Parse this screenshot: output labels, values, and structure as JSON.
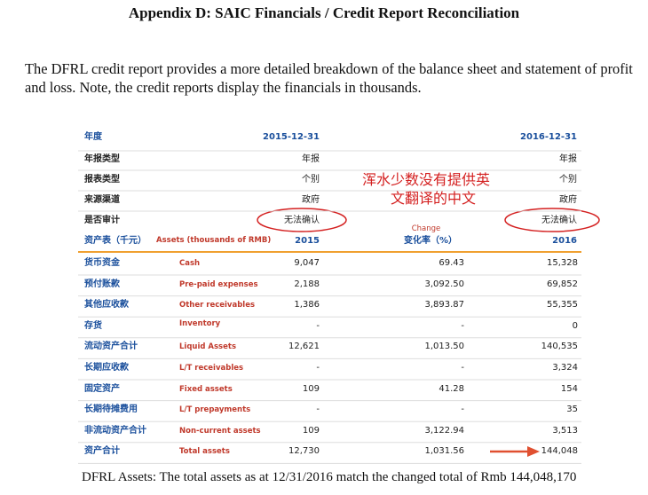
{
  "header": {
    "title": "Appendix D: SAIC Financials / Credit Report Reconciliation"
  },
  "intro": "The DFRL credit report provides a more detailed breakdown of the balance sheet and statement of profit and loss.  Note, the credit reports display the financials in thousands.",
  "table": {
    "year_header": [
      "年度",
      "2015-12-31",
      "2016-12-31"
    ],
    "meta_rows": [
      [
        "年报类型",
        "年报",
        "年报"
      ],
      [
        "报表类型",
        "个别",
        "个别"
      ],
      [
        "来源渠道",
        "政府",
        "政府"
      ],
      [
        "是否审计",
        "无法确认",
        "无法确认"
      ]
    ],
    "column_header": {
      "label_cn": "资产表（千元）",
      "label_en": "Assets (thousands of RMB)",
      "col_2015": "2015",
      "change_en": "Change",
      "change_cn": "变化率（%）",
      "col_2016": "2016"
    },
    "rows": [
      [
        "货币资金",
        "Cash",
        "9,047",
        "69.43",
        "15,328"
      ],
      [
        "预付账款",
        "Pre-paid expenses",
        "2,188",
        "3,092.50",
        "69,852"
      ],
      [
        "其他应收款",
        "Other receivables",
        "1,386",
        "3,893.87",
        "55,355"
      ],
      [
        "存货",
        "Inventory",
        "-",
        "-",
        "0"
      ],
      [
        "流动资产合计",
        "Liquid Assets",
        "12,621",
        "1,013.50",
        "140,535"
      ],
      [
        "长期应收款",
        "L/T receivables",
        "-",
        "-",
        "3,324"
      ],
      [
        "固定资产",
        "Fixed assets",
        "109",
        "41.28",
        "154"
      ],
      [
        "长期待摊费用",
        "L/T prepayments",
        "-",
        "-",
        "35"
      ],
      [
        "非流动资产合计",
        "Non-current assets",
        "109",
        "3,122.94",
        "3,513"
      ],
      [
        "资产合计",
        "Total assets",
        "12,730",
        "1,031.56",
        "144,048"
      ]
    ]
  },
  "annotation": [
    "浑水少数没有提供英",
    "文翻译的中文"
  ],
  "footer": "DFRL Assets:  The total assets as at 12/31/2016 match the changed total of Rmb 144,048,170"
}
